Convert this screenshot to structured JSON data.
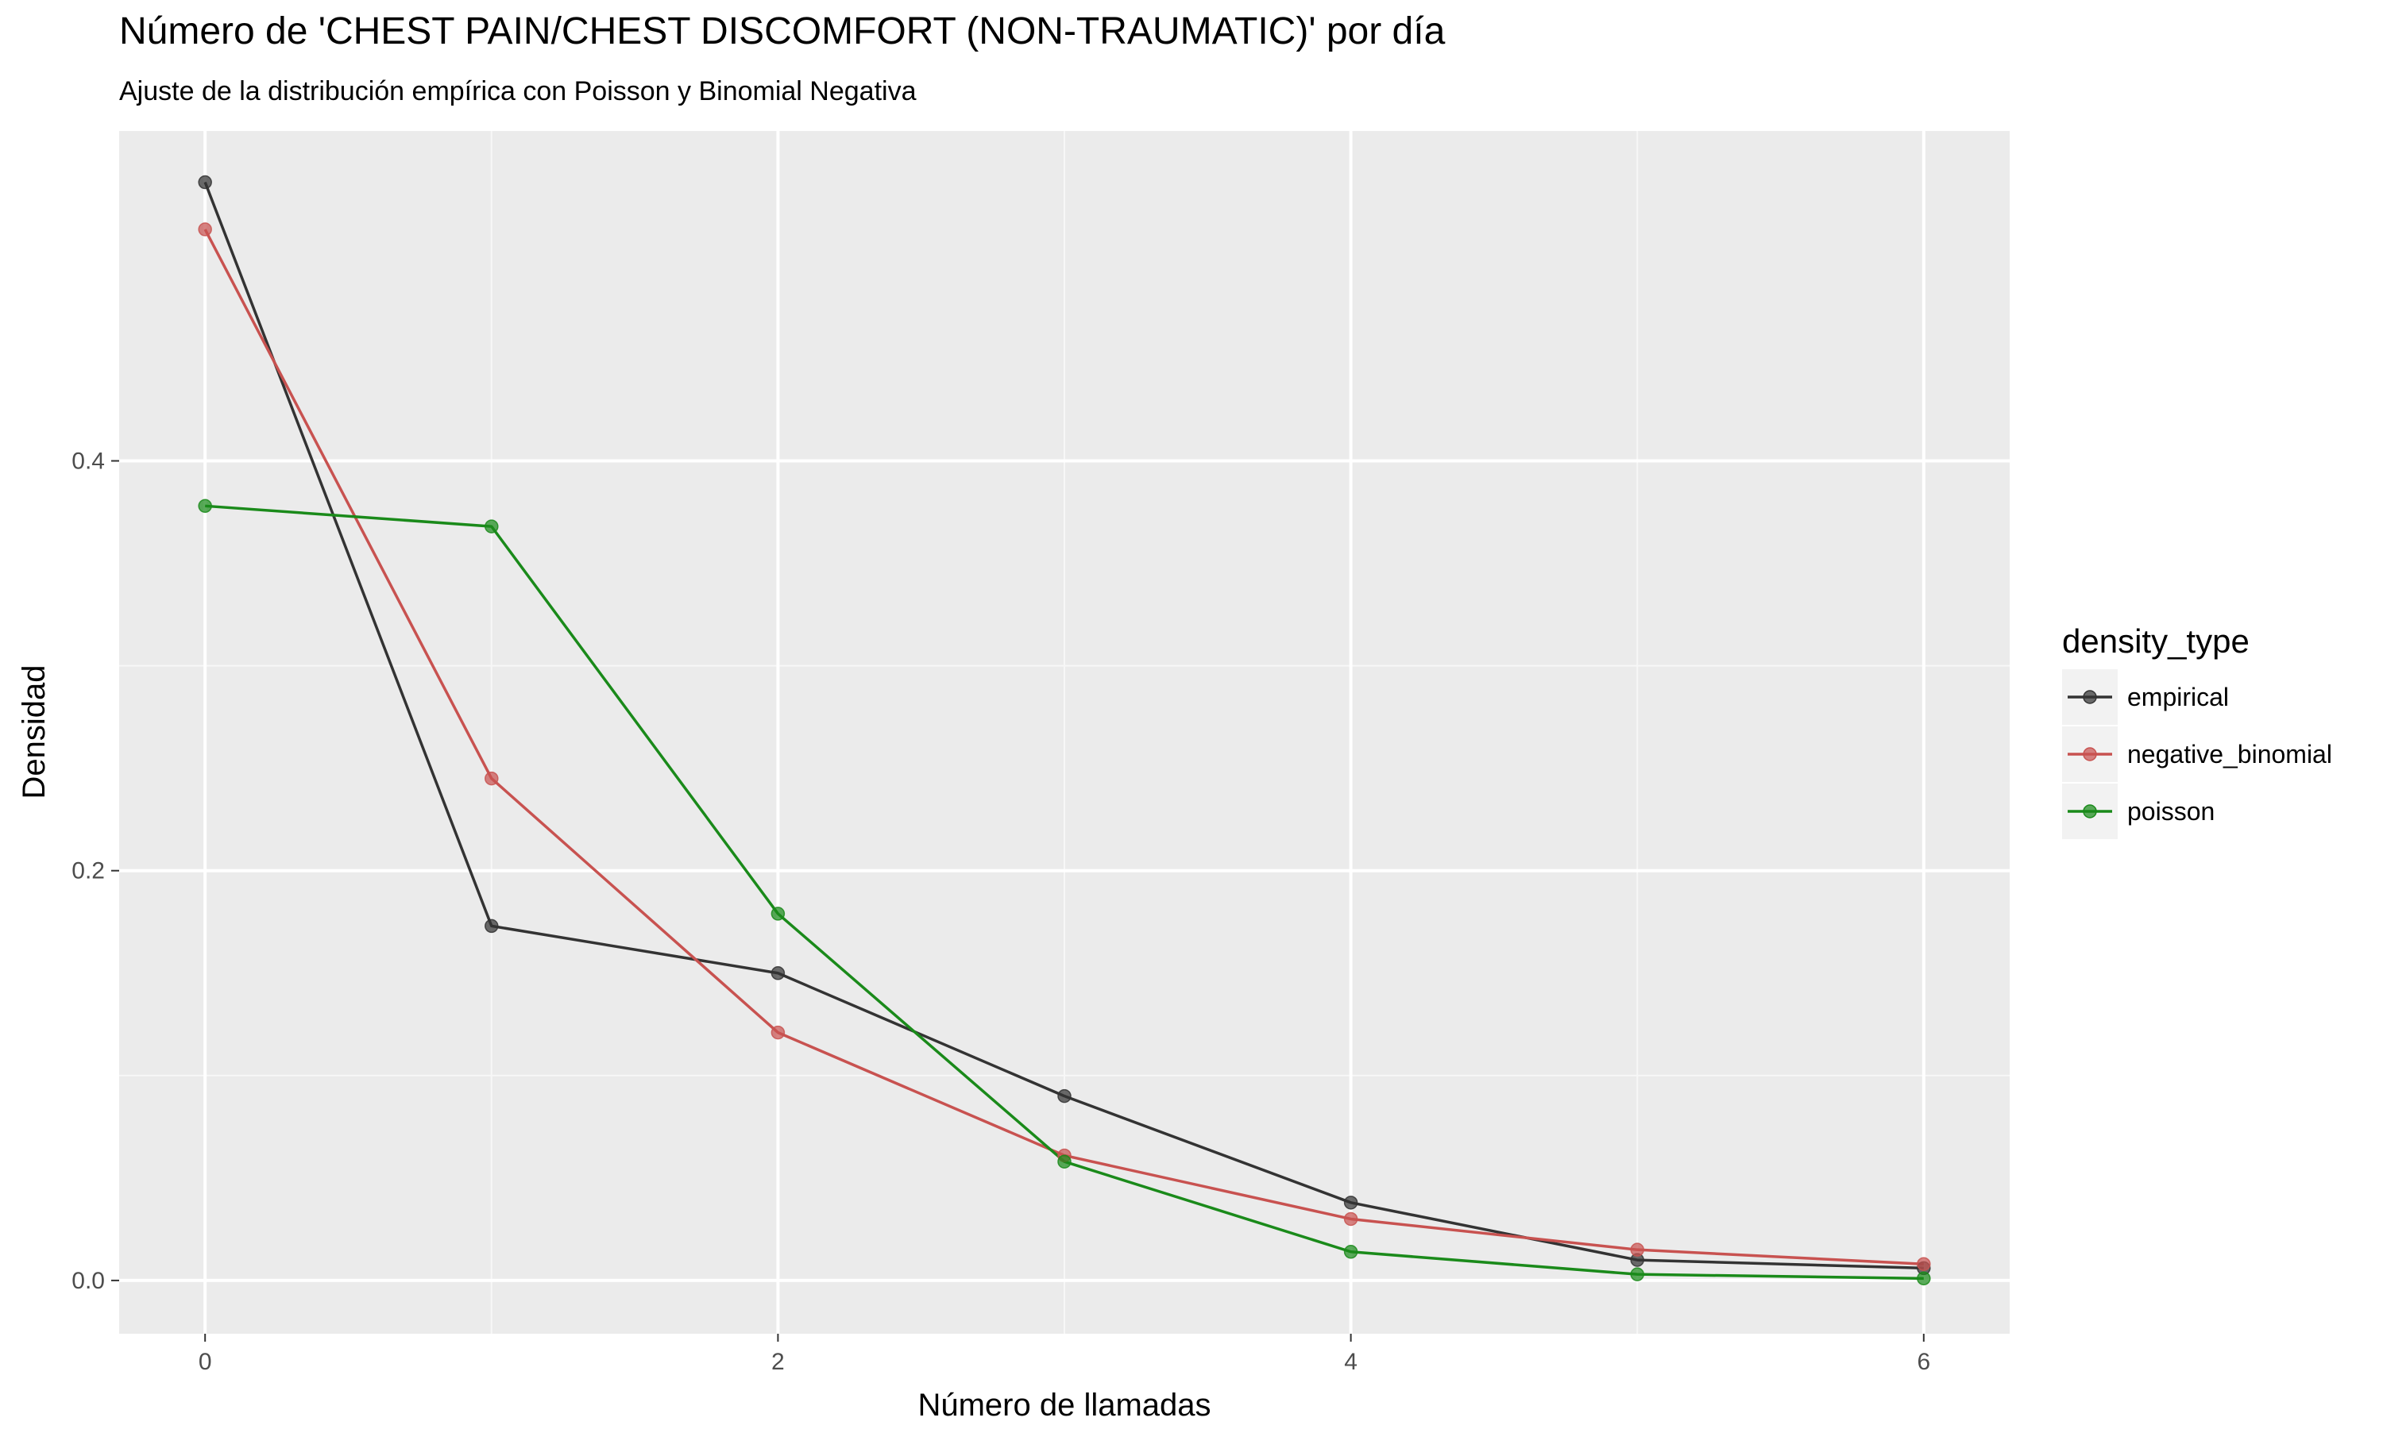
{
  "title": "Número de 'CHEST PAIN/CHEST DISCOMFORT (NON-TRAUMATIC)' por día",
  "subtitle": "Ajuste de la distribución empírica con Poisson y Binomial Negativa",
  "chart_data": {
    "type": "line",
    "title": "Número de 'CHEST PAIN/CHEST DISCOMFORT (NON-TRAUMATIC)' por día",
    "subtitle": "Ajuste de la distribución empírica con Poisson y Binomial Negativa",
    "xlabel": "Número de llamadas",
    "ylabel": "Densidad",
    "x": [
      0,
      1,
      2,
      3,
      4,
      5,
      6
    ],
    "xlim": [
      -0.3,
      6.3
    ],
    "ylim": [
      -0.026,
      0.561
    ],
    "x_ticks": [
      0,
      2,
      4,
      6
    ],
    "x_tick_labels": [
      "0",
      "2",
      "4",
      "6"
    ],
    "y_ticks": [
      0.0,
      0.2,
      0.4
    ],
    "y_tick_labels": [
      "0.0",
      "0.2",
      "0.4"
    ],
    "grid": true,
    "legend_title": "density_type",
    "legend_position": "right",
    "series": [
      {
        "name": "empirical",
        "color": "#333333",
        "values": [
          0.536,
          0.173,
          0.15,
          0.09,
          0.038,
          0.01,
          0.006
        ]
      },
      {
        "name": "negative_binomial",
        "color": "#C85250",
        "values": [
          0.513,
          0.245,
          0.121,
          0.061,
          0.03,
          0.015,
          0.008
        ]
      },
      {
        "name": "poisson",
        "color": "#1A8A1A",
        "values": [
          0.378,
          0.368,
          0.179,
          0.058,
          0.014,
          0.003,
          0.001
        ]
      }
    ]
  }
}
